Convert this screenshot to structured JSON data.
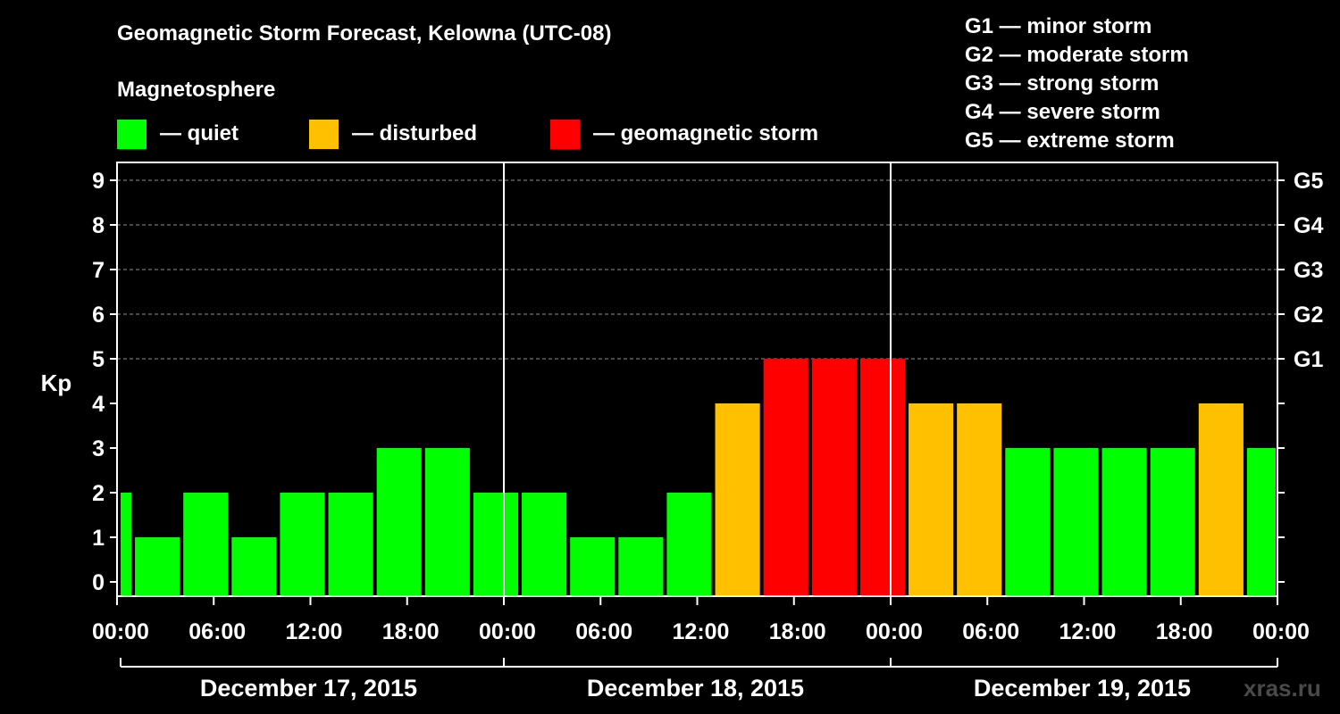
{
  "title": "Geomagnetic Storm Forecast, Kelowna (UTC-08)",
  "legend": {
    "heading": "Magnetosphere",
    "items": [
      {
        "label": "— quiet",
        "color": "#00ff00"
      },
      {
        "label": "— disturbed",
        "color": "#ffc000"
      },
      {
        "label": "— geomagnetic storm",
        "color": "#ff0000"
      }
    ]
  },
  "g_scale": [
    "G1 — minor storm",
    "G2 — moderate storm",
    "G3 — strong storm",
    "G4 — severe storm",
    "G5 — extreme storm"
  ],
  "watermark": "xras.ru",
  "chart_data": {
    "type": "bar",
    "ylabel": "Kp",
    "ylim": [
      0,
      9
    ],
    "yticks": [
      0,
      1,
      2,
      3,
      4,
      5,
      6,
      7,
      8,
      9
    ],
    "right_ticks": [
      {
        "kp": 5,
        "label": "G1"
      },
      {
        "kp": 6,
        "label": "G2"
      },
      {
        "kp": 7,
        "label": "G3"
      },
      {
        "kp": 8,
        "label": "G4"
      },
      {
        "kp": 9,
        "label": "G5"
      }
    ],
    "xticks": [
      "00:00",
      "06:00",
      "12:00",
      "18:00",
      "00:00",
      "06:00",
      "12:00",
      "18:00",
      "00:00",
      "06:00",
      "12:00",
      "18:00",
      "00:00"
    ],
    "days": [
      "December 17, 2015",
      "December 18, 2015",
      "December 19, 2015"
    ],
    "interval_hours": 3,
    "bars": [
      {
        "start_hour": 0,
        "kp": 2,
        "status": "quiet"
      },
      {
        "start_hour": 1,
        "kp": 1,
        "status": "quiet"
      },
      {
        "start_hour": 4,
        "kp": 2,
        "status": "quiet"
      },
      {
        "start_hour": 7,
        "kp": 1,
        "status": "quiet"
      },
      {
        "start_hour": 10,
        "kp": 2,
        "status": "quiet"
      },
      {
        "start_hour": 13,
        "kp": 2,
        "status": "quiet"
      },
      {
        "start_hour": 16,
        "kp": 3,
        "status": "quiet"
      },
      {
        "start_hour": 19,
        "kp": 3,
        "status": "quiet"
      },
      {
        "start_hour": 22,
        "kp": 2,
        "status": "quiet"
      },
      {
        "start_hour": 25,
        "kp": 2,
        "status": "quiet"
      },
      {
        "start_hour": 28,
        "kp": 1,
        "status": "quiet"
      },
      {
        "start_hour": 31,
        "kp": 1,
        "status": "quiet"
      },
      {
        "start_hour": 34,
        "kp": 2,
        "status": "quiet"
      },
      {
        "start_hour": 37,
        "kp": 4,
        "status": "disturbed"
      },
      {
        "start_hour": 40,
        "kp": 5,
        "status": "storm"
      },
      {
        "start_hour": 43,
        "kp": 5,
        "status": "storm"
      },
      {
        "start_hour": 46,
        "kp": 5,
        "status": "storm"
      },
      {
        "start_hour": 49,
        "kp": 4,
        "status": "disturbed"
      },
      {
        "start_hour": 52,
        "kp": 4,
        "status": "disturbed"
      },
      {
        "start_hour": 55,
        "kp": 3,
        "status": "quiet"
      },
      {
        "start_hour": 58,
        "kp": 3,
        "status": "quiet"
      },
      {
        "start_hour": 61,
        "kp": 3,
        "status": "quiet"
      },
      {
        "start_hour": 64,
        "kp": 3,
        "status": "quiet"
      },
      {
        "start_hour": 67,
        "kp": 4,
        "status": "disturbed"
      },
      {
        "start_hour": 70,
        "kp": 3,
        "status": "quiet"
      }
    ],
    "colors": {
      "quiet": "#00ff00",
      "disturbed": "#ffc000",
      "storm": "#ff0000"
    },
    "grid": true
  }
}
